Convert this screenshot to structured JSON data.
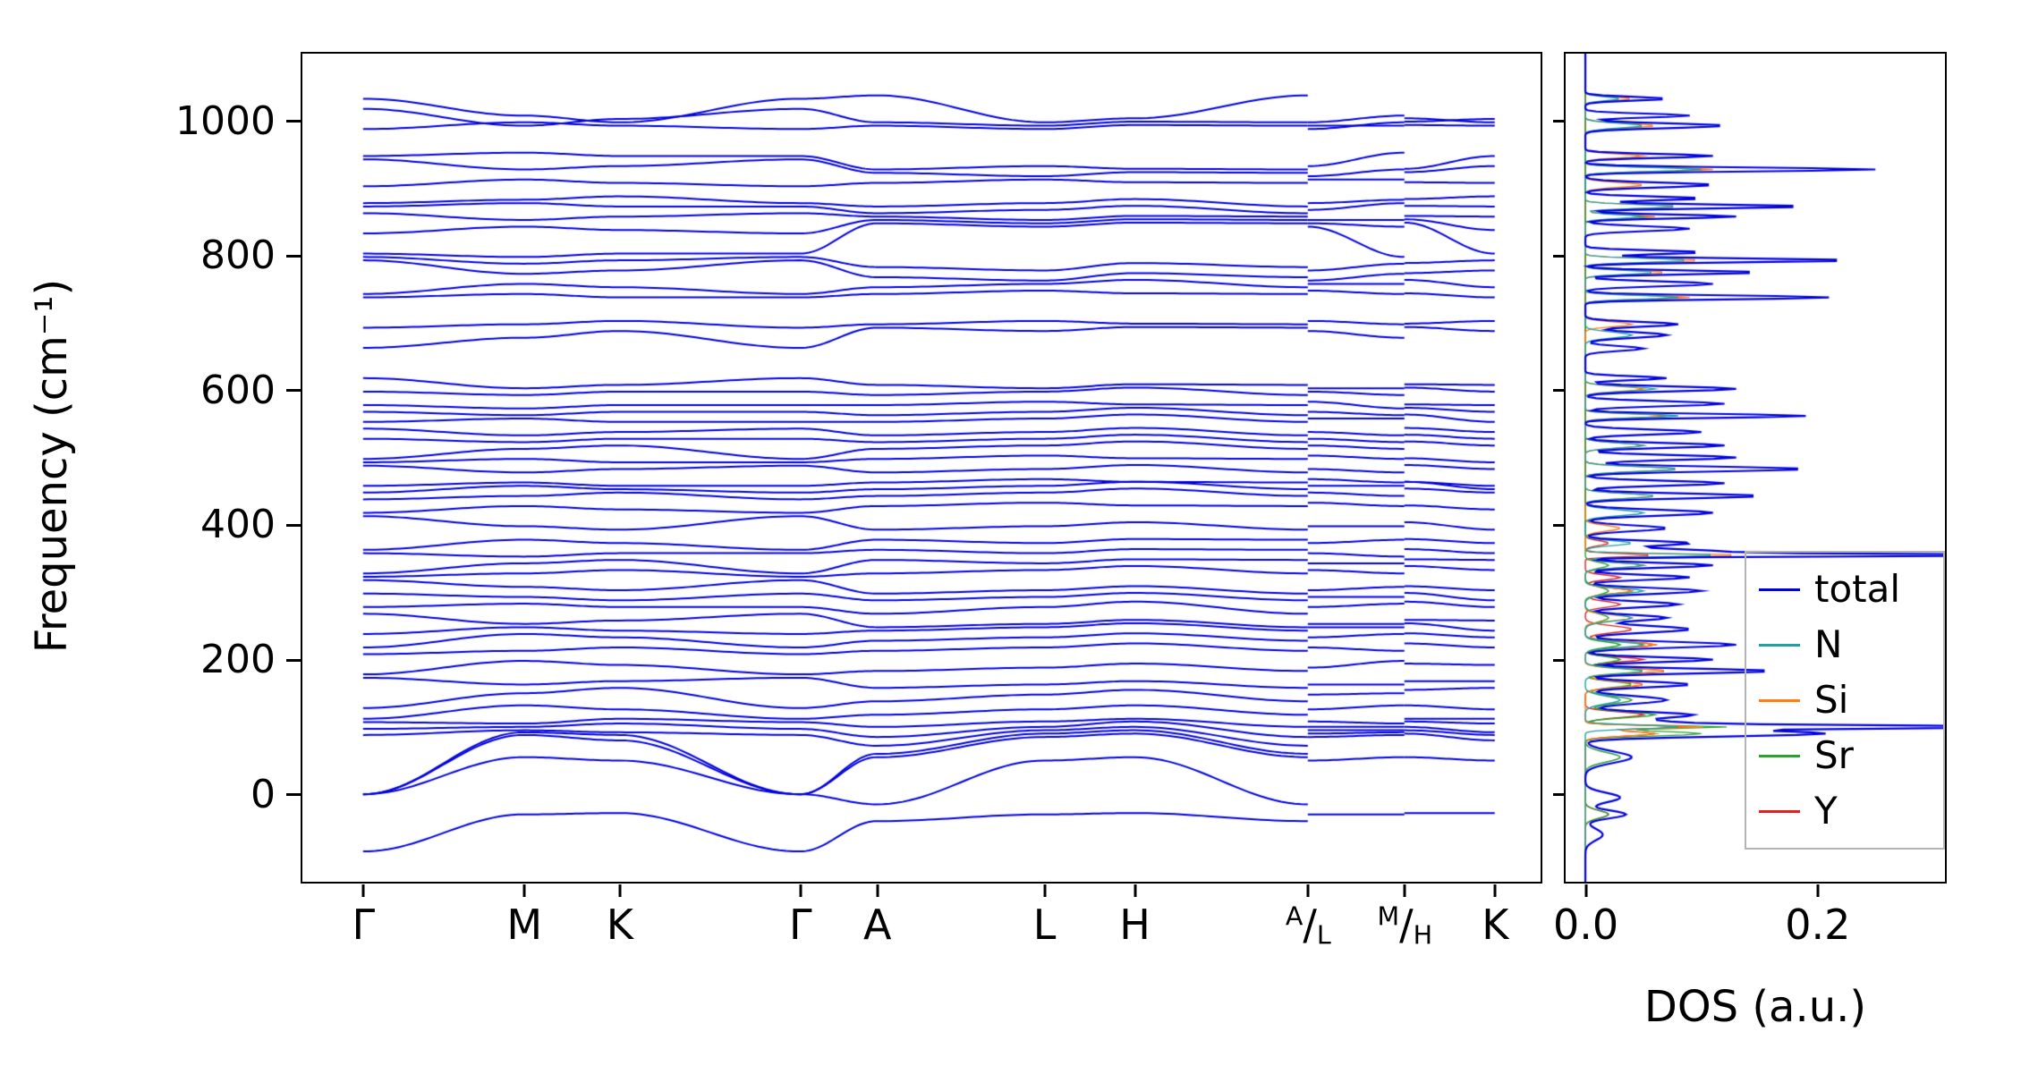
{
  "figure": {
    "background": "#ffffff",
    "text_color": "#000000",
    "spine_color": "#000000",
    "legend_border_color": "#b4b4b4"
  },
  "chart_data": [
    {
      "type": "line",
      "panel": "phonon-band-structure",
      "ylabel": "Frequency (cm⁻¹)",
      "ylim": [
        -130,
        1100
      ],
      "yticks": [
        0,
        200,
        400,
        600,
        800,
        1000
      ],
      "ytick_labels": [
        "0",
        "200",
        "400",
        "600",
        "800",
        "1000"
      ],
      "line_color": "#0000e0",
      "grid": false,
      "kpath": {
        "points": [
          {
            "x": 0.049,
            "key": "G",
            "label": "Γ"
          },
          {
            "x": 0.179,
            "key": "M",
            "label": "M"
          },
          {
            "x": 0.256,
            "key": "K",
            "label": "K"
          },
          {
            "x": 0.402,
            "key": "G",
            "label": "Γ"
          },
          {
            "x": 0.464,
            "key": "A",
            "label": "A"
          },
          {
            "x": 0.599,
            "key": "L",
            "label": "L"
          },
          {
            "x": 0.672,
            "key": "H",
            "label": "H"
          },
          {
            "x": 0.812,
            "key": "A",
            "label": "A/L",
            "sup": "A",
            "sub": "L"
          },
          {
            "x": 0.812,
            "key": "L",
            "break_before": true
          },
          {
            "x": 0.89,
            "key": "M",
            "label": "M/H",
            "sup": "M",
            "sub": "H"
          },
          {
            "x": 0.89,
            "key": "H",
            "break_before": true
          },
          {
            "x": 0.963,
            "key": "K",
            "label": "K"
          }
        ],
        "band_value_order": [
          "G",
          "M",
          "K",
          "A",
          "L",
          "H"
        ]
      },
      "bands": [
        [
          -85,
          -30,
          -28,
          -40,
          -30,
          -28
        ],
        [
          0,
          55,
          50,
          -15,
          50,
          55
        ],
        [
          0,
          88,
          80,
          55,
          85,
          90
        ],
        [
          0,
          92,
          88,
          60,
          90,
          95
        ],
        [
          88,
          95,
          92,
          72,
          95,
          100
        ],
        [
          97,
          100,
          105,
          85,
          100,
          108
        ],
        [
          107,
          105,
          112,
          100,
          108,
          112
        ],
        [
          112,
          132,
          126,
          118,
          126,
          132
        ],
        [
          128,
          150,
          158,
          138,
          148,
          155
        ],
        [
          173,
          163,
          168,
          158,
          163,
          168
        ],
        [
          178,
          198,
          192,
          183,
          188,
          194
        ],
        [
          208,
          213,
          218,
          213,
          218,
          224
        ],
        [
          218,
          238,
          233,
          228,
          233,
          239
        ],
        [
          238,
          248,
          243,
          243,
          248,
          254
        ],
        [
          268,
          253,
          258,
          248,
          253,
          259
        ],
        [
          278,
          283,
          278,
          268,
          278,
          286
        ],
        [
          298,
          293,
          288,
          288,
          293,
          299
        ],
        [
          318,
          308,
          303,
          298,
          303,
          309
        ],
        [
          323,
          328,
          333,
          328,
          333,
          339
        ],
        [
          328,
          343,
          348,
          348,
          343,
          349
        ],
        [
          358,
          353,
          358,
          363,
          358,
          364
        ],
        [
          363,
          378,
          373,
          378,
          373,
          379
        ],
        [
          413,
          398,
          393,
          393,
          398,
          404
        ],
        [
          418,
          428,
          423,
          428,
          433,
          429
        ],
        [
          438,
          443,
          448,
          443,
          448,
          454
        ],
        [
          448,
          458,
          453,
          453,
          458,
          464
        ],
        [
          458,
          463,
          458,
          463,
          468,
          464
        ],
        [
          488,
          478,
          483,
          478,
          483,
          489
        ],
        [
          493,
          498,
          493,
          498,
          503,
          499
        ],
        [
          498,
          513,
          518,
          513,
          518,
          524
        ],
        [
          528,
          523,
          528,
          523,
          528,
          534
        ],
        [
          543,
          533,
          538,
          533,
          538,
          544
        ],
        [
          553,
          558,
          553,
          553,
          558,
          564
        ],
        [
          568,
          563,
          568,
          563,
          568,
          574
        ],
        [
          578,
          573,
          578,
          578,
          583,
          579
        ],
        [
          598,
          593,
          598,
          593,
          598,
          604
        ],
        [
          618,
          603,
          608,
          608,
          603,
          609
        ],
        [
          663,
          678,
          688,
          693,
          688,
          694
        ],
        [
          693,
          698,
          703,
          698,
          703,
          699
        ],
        [
          738,
          743,
          738,
          743,
          748,
          744
        ],
        [
          743,
          758,
          753,
          753,
          758,
          764
        ],
        [
          793,
          773,
          778,
          768,
          763,
          774
        ],
        [
          798,
          788,
          793,
          783,
          778,
          789
        ],
        [
          803,
          798,
          803,
          848,
          843,
          849
        ],
        [
          833,
          843,
          838,
          853,
          848,
          854
        ],
        [
          863,
          853,
          858,
          858,
          853,
          859
        ],
        [
          873,
          878,
          873,
          863,
          868,
          874
        ],
        [
          878,
          883,
          888,
          873,
          878,
          884
        ],
        [
          903,
          913,
          908,
          908,
          913,
          909
        ],
        [
          943,
          928,
          933,
          923,
          918,
          924
        ],
        [
          948,
          953,
          948,
          928,
          933,
          929
        ],
        [
          988,
          998,
          993,
          993,
          988,
          994
        ],
        [
          1018,
          993,
          1003,
          998,
          993,
          999
        ],
        [
          1033,
          1008,
          998,
          1038,
          998,
          1004
        ]
      ]
    },
    {
      "type": "line",
      "panel": "phonon-dos",
      "xlabel": "DOS (a.u.)",
      "xlim": [
        -0.017,
        0.31
      ],
      "xticks": [
        0.0,
        0.2
      ],
      "xtick_labels": [
        "0.0",
        "0.2"
      ],
      "ylim": [
        -130,
        1100
      ],
      "grid": false,
      "legend": {
        "position": "lower right"
      },
      "series": [
        {
          "name": "total",
          "color": "#0000e0",
          "line_width": 2.2,
          "peaks": [
            [
              -60,
              0.015,
              12
            ],
            [
              -30,
              0.035,
              8
            ],
            [
              -5,
              0.03,
              10
            ],
            [
              55,
              0.04,
              12
            ],
            [
              90,
              0.2,
              6
            ],
            [
              100,
              0.3,
              3
            ],
            [
              103,
              0.1,
              8
            ],
            [
              118,
              0.09,
              6
            ],
            [
              140,
              0.07,
              8
            ],
            [
              163,
              0.09,
              6
            ],
            [
              183,
              0.16,
              5
            ],
            [
              200,
              0.11,
              5
            ],
            [
              222,
              0.13,
              6
            ],
            [
              245,
              0.09,
              7
            ],
            [
              262,
              0.07,
              6
            ],
            [
              282,
              0.08,
              6
            ],
            [
              302,
              0.1,
              6
            ],
            [
              322,
              0.09,
              5
            ],
            [
              340,
              0.11,
              5
            ],
            [
              355,
              0.33,
              2.5
            ],
            [
              360,
              0.12,
              6
            ],
            [
              373,
              0.09,
              5
            ],
            [
              395,
              0.07,
              6
            ],
            [
              418,
              0.11,
              6
            ],
            [
              443,
              0.15,
              5
            ],
            [
              462,
              0.12,
              5
            ],
            [
              483,
              0.19,
              5
            ],
            [
              500,
              0.13,
              5
            ],
            [
              518,
              0.12,
              5
            ],
            [
              538,
              0.1,
              5
            ],
            [
              562,
              0.19,
              4
            ],
            [
              580,
              0.12,
              5
            ],
            [
              602,
              0.13,
              5
            ],
            [
              618,
              0.07,
              4
            ],
            [
              662,
              0.05,
              5
            ],
            [
              682,
              0.07,
              6
            ],
            [
              698,
              0.08,
              5
            ],
            [
              738,
              0.21,
              4
            ],
            [
              758,
              0.11,
              5
            ],
            [
              775,
              0.15,
              4
            ],
            [
              793,
              0.23,
              4
            ],
            [
              805,
              0.1,
              4
            ],
            [
              840,
              0.09,
              5
            ],
            [
              858,
              0.13,
              4
            ],
            [
              873,
              0.19,
              4
            ],
            [
              885,
              0.1,
              4
            ],
            [
              905,
              0.11,
              5
            ],
            [
              928,
              0.25,
              4
            ],
            [
              948,
              0.11,
              4
            ],
            [
              993,
              0.12,
              5
            ],
            [
              1008,
              0.09,
              4
            ],
            [
              1033,
              0.07,
              4
            ]
          ]
        },
        {
          "name": "N",
          "color": "#20a0a0",
          "line_width": 1.4,
          "peaks": [
            [
              100,
              0.08,
              4
            ],
            [
              140,
              0.03,
              8
            ],
            [
              183,
              0.05,
              6
            ],
            [
              222,
              0.05,
              6
            ],
            [
              262,
              0.04,
              7
            ],
            [
              302,
              0.05,
              6
            ],
            [
              340,
              0.05,
              5
            ],
            [
              355,
              0.12,
              3
            ],
            [
              373,
              0.04,
              5
            ],
            [
              418,
              0.05,
              6
            ],
            [
              443,
              0.06,
              5
            ],
            [
              483,
              0.08,
              5
            ],
            [
              518,
              0.05,
              5
            ],
            [
              562,
              0.08,
              4
            ],
            [
              602,
              0.06,
              5
            ],
            [
              682,
              0.04,
              6
            ],
            [
              738,
              0.08,
              4
            ],
            [
              775,
              0.06,
              4
            ],
            [
              793,
              0.09,
              4
            ],
            [
              858,
              0.05,
              4
            ],
            [
              873,
              0.08,
              4
            ],
            [
              928,
              0.1,
              4
            ],
            [
              993,
              0.05,
              5
            ],
            [
              1033,
              0.03,
              4
            ]
          ]
        },
        {
          "name": "Si",
          "color": "#ff7f0e",
          "line_width": 1.4,
          "peaks": [
            [
              90,
              0.06,
              5
            ],
            [
              100,
              0.1,
              3
            ],
            [
              163,
              0.05,
              6
            ],
            [
              183,
              0.07,
              5
            ],
            [
              222,
              0.06,
              6
            ],
            [
              262,
              0.04,
              6
            ],
            [
              302,
              0.04,
              6
            ],
            [
              340,
              0.05,
              5
            ],
            [
              355,
              0.14,
              3
            ],
            [
              395,
              0.03,
              6
            ],
            [
              443,
              0.06,
              5
            ],
            [
              483,
              0.08,
              5
            ],
            [
              518,
              0.05,
              5
            ],
            [
              562,
              0.07,
              4
            ],
            [
              602,
              0.05,
              5
            ],
            [
              698,
              0.04,
              5
            ],
            [
              738,
              0.09,
              4
            ],
            [
              775,
              0.07,
              4
            ],
            [
              793,
              0.1,
              4
            ],
            [
              858,
              0.06,
              4
            ],
            [
              873,
              0.08,
              4
            ],
            [
              905,
              0.05,
              5
            ],
            [
              928,
              0.11,
              4
            ],
            [
              948,
              0.05,
              4
            ],
            [
              993,
              0.06,
              5
            ],
            [
              1033,
              0.04,
              4
            ]
          ]
        },
        {
          "name": "Sr",
          "color": "#2ca02c",
          "line_width": 1.4,
          "peaks": [
            [
              -30,
              0.02,
              8
            ],
            [
              55,
              0.03,
              10
            ],
            [
              90,
              0.1,
              5
            ],
            [
              100,
              0.12,
              3
            ],
            [
              118,
              0.06,
              6
            ],
            [
              140,
              0.04,
              8
            ],
            [
              163,
              0.04,
              6
            ],
            [
              183,
              0.05,
              5
            ],
            [
              200,
              0.03,
              6
            ],
            [
              222,
              0.03,
              6
            ],
            [
              262,
              0.02,
              8
            ],
            [
              302,
              0.02,
              8
            ],
            [
              340,
              0.02,
              6
            ]
          ]
        },
        {
          "name": "Y",
          "color": "#dd2222",
          "line_width": 1.4,
          "peaks": [
            [
              -30,
              0.02,
              8
            ],
            [
              90,
              0.06,
              5
            ],
            [
              100,
              0.09,
              3
            ],
            [
              118,
              0.05,
              6
            ],
            [
              163,
              0.05,
              6
            ],
            [
              183,
              0.07,
              5
            ],
            [
              200,
              0.05,
              5
            ],
            [
              222,
              0.06,
              6
            ],
            [
              245,
              0.04,
              7
            ],
            [
              282,
              0.03,
              6
            ],
            [
              302,
              0.04,
              6
            ],
            [
              322,
              0.03,
              5
            ],
            [
              355,
              0.06,
              3
            ],
            [
              373,
              0.02,
              5
            ]
          ]
        }
      ]
    }
  ]
}
